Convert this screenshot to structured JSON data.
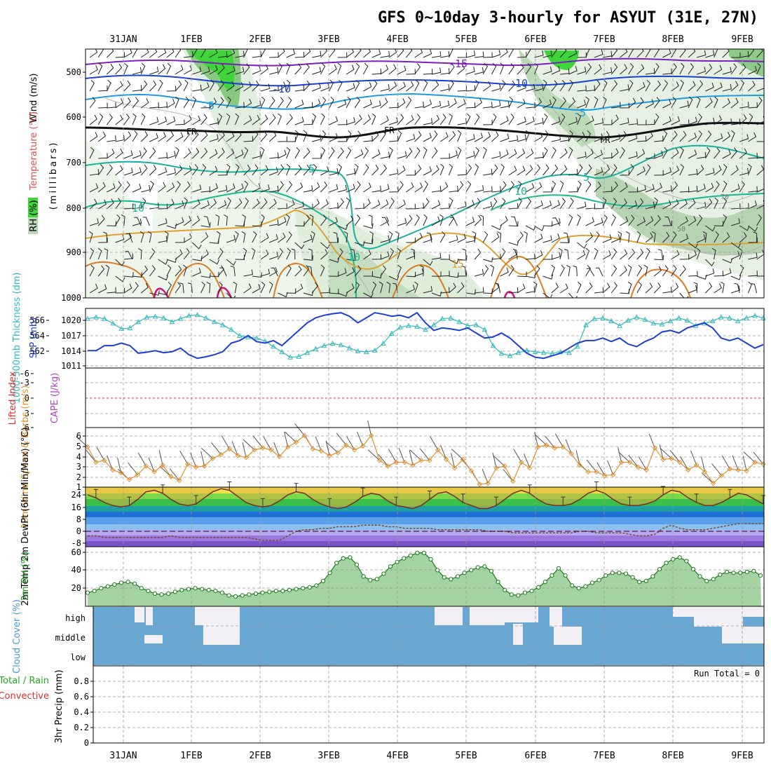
{
  "title": "GFS 0~10day 3-hourly for ASYUT (31E, 27N)",
  "run_total": "Run Total = 0",
  "colors": {
    "rh_green_light": "#e3f0e0",
    "rh_green_mid": "#b9d8b5",
    "rh_green_bright": "#22dd22",
    "temp_purple": "#7b1fc0",
    "temp_blue": "#1a3fd6",
    "temp_cyan": "#1e9be0",
    "temp_teal": "#14b0a0",
    "temp_orange": "#e0a030",
    "temp_dark_orange": "#e07a20",
    "temp_magenta": "#d01080",
    "slp_blue": "#1a3fd6",
    "thickness_cyan": "#30b8c0",
    "wind_orange": "#e09030",
    "rh_line_green": "#1a7a1a",
    "cloud_blue": "#6aa8d4",
    "cloud_white": "#f2f0f4",
    "li_red": "#e03030"
  },
  "chart_data": [
    {
      "type": "contour",
      "name": "upper-air",
      "ylabel": "(millibars)",
      "y_ticks": [
        "500",
        "600",
        "700",
        "800",
        "900",
        "1000"
      ],
      "side_labels": [
        "Wind (m/s)",
        "Temperature (°C)",
        "RH (%)"
      ],
      "contour_labels": [
        "-15",
        "-10",
        "-5",
        "FR",
        "FR",
        "FR",
        "5",
        "5",
        "10",
        "10",
        "10",
        "15",
        "50",
        "70"
      ],
      "x_dates": [
        "31JAN",
        "1FEB",
        "2FEB",
        "3FEB",
        "4FEB",
        "5FEB",
        "6FEB",
        "7FEB",
        "8FEB",
        "9FEB"
      ]
    },
    {
      "type": "line",
      "name": "slp-thickness",
      "left_ylabel": "1000-500mb Thickness (dm)",
      "right_ylabel": "SLP (mb)",
      "left_ticks": [
        "566",
        "564",
        "562"
      ],
      "right_ticks": [
        "1020",
        "1017",
        "1014",
        "1011"
      ],
      "series": [
        {
          "name": "SLP (mb)",
          "values": [
            1014,
            1014,
            1015,
            1015,
            1015.5,
            1015,
            1013.5,
            1013.7,
            1014,
            1013.6,
            1013.8,
            1014.5,
            1013.2,
            1012.5,
            1012.8,
            1013.2,
            1013.8,
            1015.5,
            1016,
            1017,
            1015.8,
            1015.5,
            1016,
            1015,
            1016.5,
            1018,
            1019.5,
            1020.5,
            1021,
            1021.3,
            1021.5,
            1020.8,
            1019.5,
            1020.5,
            1021.5,
            1021.2,
            1020.8,
            1021,
            1020.5,
            1021.5,
            1019.5,
            1018,
            1018.5,
            1018.3,
            1018,
            1018.5,
            1017.5,
            1016.5,
            1016.7,
            1017.5,
            1016.5,
            1015,
            1013.5,
            1012.7,
            1012.5,
            1013,
            1013.5,
            1014.5,
            1015.5,
            1016,
            1016,
            1016.5,
            1015.8,
            1016.5,
            1015.3,
            1014.8,
            1015.8,
            1016.5,
            1017.7,
            1018,
            1017.5,
            1018.5,
            1019,
            1019.5,
            1018.5,
            1016.5,
            1016,
            1016.5,
            1015.5,
            1014.5,
            1015.2
          ]
        },
        {
          "name": "1000-500mb Thickness (dm)",
          "values": [
            566.2,
            566.4,
            566.2,
            565.6,
            564.9,
            565,
            565.8,
            566.4,
            566.5,
            566.3,
            565.8,
            566.2,
            566.6,
            566.7,
            566.3,
            565.8,
            565.4,
            564.8,
            564,
            563.8,
            563.7,
            563.3,
            562.6,
            561.9,
            561.2,
            561.3,
            561.8,
            562.3,
            562.7,
            563,
            562.8,
            562.4,
            562,
            561.9,
            562.1,
            563,
            564.3,
            565.1,
            565.3,
            565.2,
            564.8,
            565.4,
            566.2,
            566.3,
            565.8,
            565.3,
            565.4,
            564.8,
            562.7,
            561.7,
            561.4,
            561.8,
            562.1,
            561.9,
            561.8,
            561.7,
            561.9,
            561.8,
            562.6,
            565.4,
            566.2,
            566.3,
            565.9,
            565.3,
            566,
            566.4,
            566.1,
            565.6,
            565.5,
            565.9,
            566.3,
            566,
            565.3,
            565.6,
            565.9,
            566.4,
            566.3,
            565.9,
            566.3,
            566.6,
            566.3
          ]
        }
      ]
    },
    {
      "type": "line",
      "name": "stability",
      "left_ylabel": "Lifted Index",
      "right_ylabel": "CAPE (J/kg)",
      "y_ticks": [
        "-6",
        "-3",
        "0",
        "3",
        "6"
      ],
      "values": []
    },
    {
      "type": "line",
      "name": "10m-wind",
      "ylabel": "10m Wind Speed & Barbs (m/s)",
      "y_ticks": [
        "6",
        "5",
        "4",
        "3",
        "2",
        "1"
      ],
      "series": [
        {
          "name": "10m Wind Speed (m/s)",
          "values": [
            5.2,
            3.6,
            3.8,
            2.8,
            2.5,
            1.8,
            2.3,
            3.2,
            2.6,
            3.3,
            2.1,
            1.7,
            3.4,
            3.1,
            3.2,
            4.0,
            4.4,
            5.0,
            4.3,
            4.1,
            4.9,
            5.1,
            4.9,
            4.2,
            5.2,
            5.7,
            6.4,
            5.0,
            4.8,
            4.3,
            4.6,
            5.4,
            4.9,
            5.3,
            6.4,
            3.8,
            3.2,
            3.6,
            3.6,
            3.3,
            3.8,
            3.8,
            4.9,
            3.9,
            3.0,
            3.9,
            2.7,
            1.3,
            1.4,
            3.0,
            3.2,
            1.6,
            3.6,
            3.0,
            5.2,
            5.4,
            5.1,
            5.2,
            4.5,
            3.3,
            2.6,
            2.6,
            2.2,
            2.3,
            3.6,
            3.6,
            3.1,
            2.8,
            5.1,
            3.9,
            4.0,
            3.6,
            2.8,
            3.3,
            2.6,
            1.4,
            2.2,
            2.9,
            2.8,
            2.7,
            3.6,
            3.4
          ]
        }
      ]
    },
    {
      "type": "area",
      "name": "2m-temp",
      "ylabel": "2m Temp 2m DewPt (6hr Min/Max) (°C)",
      "y_ticks": [
        "24",
        "16",
        "8",
        "0",
        "-8"
      ],
      "series": [
        {
          "name": "2m Temp (°C)",
          "values": [
            24,
            22,
            19,
            17,
            16,
            17,
            21,
            26,
            27,
            25,
            21,
            18,
            17,
            18,
            22,
            26,
            28,
            27,
            23,
            19,
            17,
            16,
            17,
            20,
            24,
            26,
            25,
            21,
            18,
            16,
            15,
            16,
            19,
            23,
            25,
            24,
            20,
            17,
            16,
            15,
            17,
            21,
            25,
            26,
            23,
            19,
            17,
            15,
            15,
            17,
            21,
            25,
            27,
            25,
            21,
            18,
            17,
            17,
            18,
            21,
            25,
            27,
            25,
            21,
            18,
            17,
            17,
            18,
            20,
            24,
            27,
            26,
            22,
            19,
            17,
            17,
            19,
            22,
            25,
            24,
            21,
            18
          ]
        },
        {
          "name": "2m DewPt (°C)",
          "values": [
            -3,
            -3,
            -4,
            -4,
            -4,
            -4,
            -4,
            -4,
            -4,
            -4,
            -3,
            -4,
            -4,
            -4,
            -4,
            -4,
            -4,
            -4,
            -4,
            -4,
            -5,
            -6,
            -6,
            -6,
            -3,
            0,
            1,
            1,
            2,
            2,
            3,
            3,
            3,
            4,
            4,
            4,
            3,
            3,
            2,
            2,
            2,
            2,
            1,
            1,
            1,
            1,
            1,
            1,
            0,
            0,
            0,
            -1,
            -1,
            -1,
            -1,
            -1,
            -1,
            -1,
            -1,
            0,
            0,
            -1,
            -1,
            -1,
            -1,
            -2,
            -3,
            -3,
            -2,
            2,
            4,
            2,
            1,
            1,
            1,
            2,
            3,
            4,
            5,
            5,
            5,
            5
          ]
        }
      ]
    },
    {
      "type": "area",
      "name": "2m-rh",
      "ylabel": "2m RH (%)",
      "y_ticks": [
        "60",
        "40",
        "20"
      ],
      "series": [
        {
          "name": "2m RH (%)",
          "values": [
            15,
            17,
            20,
            22,
            24,
            26,
            27,
            25,
            20,
            17,
            14,
            13,
            14,
            16,
            18,
            19,
            20,
            19,
            18,
            17,
            15,
            12,
            11,
            12,
            13,
            14,
            15,
            16,
            17,
            17,
            18,
            19,
            20,
            21,
            23,
            28,
            37,
            48,
            53,
            54,
            46,
            33,
            29,
            30,
            36,
            44,
            49,
            53,
            56,
            59,
            59,
            52,
            40,
            32,
            30,
            33,
            37,
            40,
            43,
            44,
            39,
            27,
            18,
            13,
            12,
            15,
            17,
            21,
            27,
            34,
            42,
            34,
            23,
            20,
            22,
            26,
            29,
            34,
            37,
            37,
            36,
            32,
            27,
            28,
            33,
            41,
            48,
            52,
            54,
            50,
            41,
            33,
            28,
            30,
            35,
            38,
            37,
            37,
            38,
            39,
            34
          ]
        }
      ]
    },
    {
      "type": "heatmap",
      "name": "cloud-cover",
      "ylabel": "Cloud Cover (%)",
      "levels": [
        "high",
        "middle",
        "low"
      ]
    },
    {
      "type": "bar",
      "name": "precip",
      "ylabel": "3hr Precip (mm)",
      "side_labels": [
        "Total / Rain",
        "Convective"
      ],
      "y_ticks": [
        "0.8",
        "0.6",
        "0.4",
        "0.2",
        "0"
      ],
      "values": []
    }
  ]
}
